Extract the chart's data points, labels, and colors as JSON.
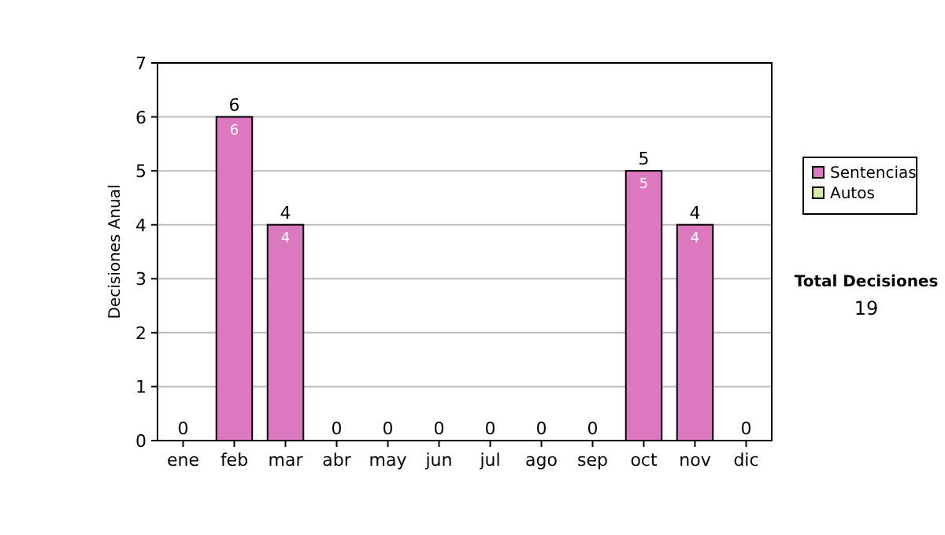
{
  "chart_data": {
    "type": "bar",
    "stacked": true,
    "ylabel": "Decisiones Anual",
    "categories": [
      "ene",
      "feb",
      "mar",
      "abr",
      "may",
      "jun",
      "jul",
      "ago",
      "sep",
      "oct",
      "nov",
      "dic"
    ],
    "series": [
      {
        "name": "Sentencias",
        "color": "#dc78c0",
        "values": [
          0,
          6,
          4,
          0,
          0,
          0,
          0,
          0,
          0,
          5,
          4,
          0
        ],
        "value_labels": [
          null,
          "6",
          "4",
          null,
          null,
          null,
          null,
          null,
          null,
          "5",
          "4",
          null
        ]
      },
      {
        "name": "Autos",
        "color": "#d8eca0",
        "values": [
          0,
          0,
          0,
          0,
          0,
          0,
          0,
          0,
          0,
          0,
          0,
          0
        ]
      }
    ],
    "totals": [
      "0",
      "6",
      "4",
      "0",
      "0",
      "0",
      "0",
      "0",
      "0",
      "5",
      "4",
      "0"
    ],
    "ylim": [
      0,
      7
    ],
    "yticks": [
      0,
      1,
      2,
      3,
      4,
      5,
      6,
      7
    ],
    "grid": "y",
    "legend": "right",
    "annotations": [
      "Total Decisiones",
      "19"
    ]
  }
}
